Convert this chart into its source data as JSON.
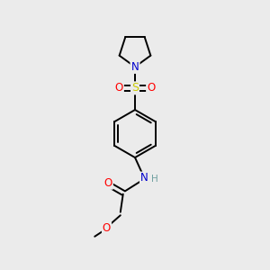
{
  "background_color": "#ebebeb",
  "atom_colors": {
    "C": "#000000",
    "N": "#0000cc",
    "O": "#ff0000",
    "S": "#cccc00",
    "H": "#70a0a0"
  },
  "figsize": [
    3.0,
    3.0
  ],
  "dpi": 100,
  "lw": 1.4
}
